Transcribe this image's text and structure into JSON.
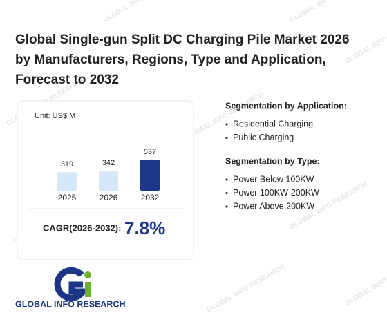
{
  "title_lines": [
    "Global Single-gun Split DC Charging Pile Market 2026",
    "by Manufacturers, Regions, Type and Application,",
    "Forecast to 2032"
  ],
  "chart_data": {
    "type": "bar",
    "subtitle": "Unit: US$ M",
    "categories": [
      "2025",
      "2026",
      "2032"
    ],
    "values": [
      319,
      342,
      537
    ],
    "colors": [
      "#d5e8fb",
      "#d5e8fb",
      "#1b3687"
    ]
  },
  "cagr": {
    "label": "CAGR(2026-2032):",
    "value": "7.8%"
  },
  "segments": [
    {
      "heading": "Segmentation by Application:",
      "items": [
        "Residential Charging",
        "Public Charging"
      ]
    },
    {
      "heading": "Segmentation by Type:",
      "items": [
        "Power Below 100KW",
        "Power 100KW-200KW",
        "Power Above 200KW"
      ]
    }
  ],
  "logo_text": "GLOBAL INFO RESEARCH",
  "watermark": "GLOBAL INFO RESEARCH"
}
